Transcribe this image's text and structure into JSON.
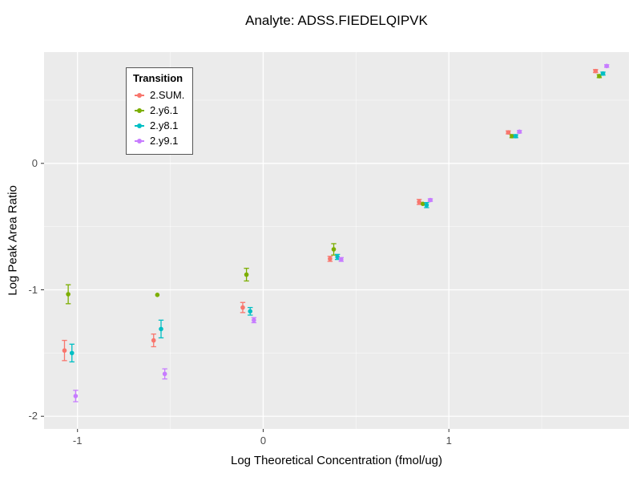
{
  "title": "Analyte: ADSS.FIEDELQIPVK",
  "axes": {
    "x_label": "Log Theoretical Concentration (fmol/ug)",
    "y_label": "Log Peak Area Ratio",
    "x_ticks": [
      {
        "value": -1,
        "label": "-1"
      },
      {
        "value": 0,
        "label": "0"
      },
      {
        "value": 1,
        "label": "1"
      }
    ],
    "y_ticks": [
      {
        "value": 0,
        "label": "0"
      },
      {
        "value": -1,
        "label": "-1"
      },
      {
        "value": -2,
        "label": "-2"
      }
    ]
  },
  "legend": {
    "title": "Transition",
    "items": [
      {
        "label": "2.SUM.",
        "color": "#F8766D"
      },
      {
        "label": "2.y6.1",
        "color": "#7CAE00"
      },
      {
        "label": "2.y8.1",
        "color": "#00BFC4"
      },
      {
        "label": "2.y9.1",
        "color": "#C77CFF"
      }
    ]
  },
  "panel": {
    "background": "#EBEBEB",
    "grid_major_color": "#FFFFFF",
    "grid_minor_color": "#FFFFFF",
    "tick_color": "#333333"
  },
  "chart_data": {
    "type": "scatter",
    "title": "Analyte: ADSS.FIEDELQIPVK",
    "xlabel": "Log Theoretical Concentration (fmol/ug)",
    "ylabel": "Log Peak Area Ratio",
    "xlim": [
      -1.18,
      1.97
    ],
    "ylim": [
      -2.1,
      0.88
    ],
    "x_major_ticks": [
      -1,
      0,
      1
    ],
    "y_major_ticks": [
      0,
      -1,
      -2
    ],
    "x_minor_ticks": [
      -0.5,
      0.5,
      1.5
    ],
    "y_minor_ticks": [
      0.5,
      -0.5,
      -1.5
    ],
    "grid": true,
    "legend_position": "inside-top-left",
    "error_bars": true,
    "x": [
      -1.04,
      -0.56,
      -0.08,
      0.39,
      0.87,
      1.35,
      1.82
    ],
    "series": [
      {
        "name": "2.SUM.",
        "color": "#F8766D",
        "dodge": -0.03,
        "y": [
          -1.48,
          -1.4,
          -1.14,
          -0.755,
          -0.305,
          0.245,
          0.73
        ],
        "err": [
          0.08,
          0.05,
          0.04,
          0.02,
          0.02,
          0.012,
          0.012
        ]
      },
      {
        "name": "2.y6.1",
        "color": "#7CAE00",
        "dodge": -0.01,
        "y": [
          -1.035,
          -1.04,
          -0.88,
          -0.68,
          -0.32,
          0.215,
          0.69
        ],
        "err": [
          0.075,
          0,
          0.05,
          0.045,
          0,
          0.012,
          0.012
        ]
      },
      {
        "name": "2.y8.1",
        "color": "#00BFC4",
        "dodge": 0.01,
        "y": [
          -1.5,
          -1.31,
          -1.17,
          -0.74,
          -0.33,
          0.215,
          0.71
        ],
        "err": [
          0.07,
          0.07,
          0.03,
          0.02,
          0.02,
          0.012,
          0.012
        ]
      },
      {
        "name": "2.y9.1",
        "color": "#C77CFF",
        "dodge": 0.03,
        "y": [
          -1.84,
          -1.665,
          -1.24,
          -0.76,
          -0.29,
          0.25,
          0.77
        ],
        "err": [
          0.045,
          0.04,
          0.02,
          0.015,
          0.01,
          0.01,
          0.01
        ]
      }
    ]
  }
}
